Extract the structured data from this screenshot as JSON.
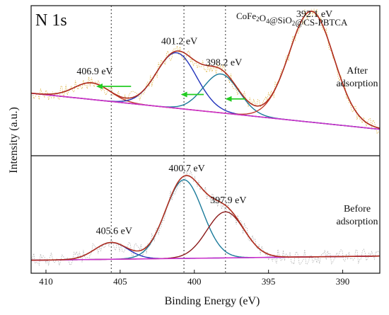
{
  "chart_data": {
    "type": "line",
    "title": "N 1s",
    "sample_label": "CoFe2O4@SiO2@CS-PBTCA",
    "xlabel": "Binding Energy (eV)",
    "ylabel": "Intensity (a.u.)",
    "x_reversed": true,
    "xlim": [
      411,
      387.5
    ],
    "x_ticks": [
      410,
      405,
      400,
      395,
      390
    ],
    "reference_lines_eV": [
      405.6,
      400.7,
      397.9
    ],
    "panels": [
      {
        "condition": "After adsorption",
        "baseline": {
          "x": [
            411,
            387.5
          ],
          "y": [
            0.42,
            0.16
          ]
        },
        "components": [
          {
            "label": "406.9 eV",
            "center": 406.9,
            "height": 0.12,
            "sigma": 1.2,
            "color": "#c0392b"
          },
          {
            "label": "401.2 eV",
            "center": 401.2,
            "height": 0.4,
            "sigma": 1.35,
            "color": "#2233bb"
          },
          {
            "label": "398.2 eV",
            "center": 398.2,
            "height": 0.28,
            "sigma": 1.2,
            "color": "#1a7a9a"
          },
          {
            "label": "392.1 eV",
            "center": 392.1,
            "height": 0.8,
            "sigma": 1.5,
            "color": "#c0392b"
          }
        ],
        "shift_arrows_eV": [
          [
            405.6,
            406.9
          ],
          [
            400.7,
            401.2
          ],
          [
            397.9,
            398.2
          ]
        ]
      },
      {
        "condition": "Before adsorption",
        "baseline": {
          "x": [
            411,
            387.5
          ],
          "y": [
            0.07,
            0.11
          ]
        },
        "components": [
          {
            "label": "405.6 eV",
            "center": 405.6,
            "height": 0.16,
            "sigma": 1.1,
            "color": "#2233bb"
          },
          {
            "label": "400.7 eV",
            "center": 400.7,
            "height": 0.75,
            "sigma": 1.25,
            "color": "#1a7a9a"
          },
          {
            "label": "397.9 eV",
            "center": 397.9,
            "height": 0.44,
            "sigma": 1.25,
            "color": "#8b1a1a"
          }
        ],
        "shift_arrows_eV": []
      }
    ],
    "colors": {
      "envelope": "#b03020",
      "background": "#cc33cc",
      "raw_top": "#d4a017",
      "raw_bottom": "#9a9a9a",
      "arrow": "#22cc22",
      "refline": "#333333"
    }
  }
}
